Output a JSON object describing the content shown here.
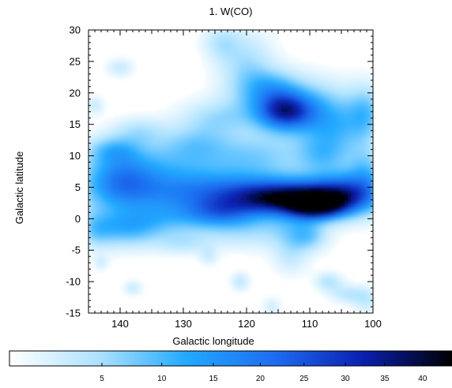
{
  "chart_data": {
    "type": "heatmap",
    "title": "1. W(CO)",
    "xlabel": "Galactic longitude",
    "ylabel": "Galactic latitude",
    "xlim": [
      145,
      100
    ],
    "ylim": [
      -15,
      30
    ],
    "x_ticks": [
      140,
      130,
      120,
      110,
      100
    ],
    "x_tick_labels": [
      "140",
      "130",
      "120",
      "110",
      "100"
    ],
    "y_ticks": [
      30,
      25,
      20,
      15,
      10,
      5,
      0,
      -5,
      -10,
      -15
    ],
    "y_tick_labels": [
      "30",
      "25",
      "20",
      "15",
      "10",
      "5",
      "0",
      "-5",
      "-10",
      "-15"
    ],
    "colorbar": {
      "ticks": [
        5,
        10,
        15,
        20,
        25,
        30,
        35,
        40
      ],
      "tick_labels": [
        "5",
        "10",
        "15",
        "20",
        "25",
        "30",
        "35",
        "40"
      ],
      "range": [
        0,
        44
      ],
      "colors": [
        "#ffffff",
        "#aee2ff",
        "#22a9ff",
        "#1e6cf0",
        "#0a1fb0",
        "#000000"
      ]
    },
    "emission_regions": [
      {
        "l": 120,
        "b": 4,
        "sl": 14,
        "sb": 2.2,
        "w": 22
      },
      {
        "l": 113,
        "b": 3,
        "sl": 6,
        "sb": 1.8,
        "w": 26
      },
      {
        "l": 109,
        "b": 2,
        "sl": 3,
        "sb": 1.4,
        "w": 30
      },
      {
        "l": 104,
        "b": 4,
        "sl": 4,
        "sb": 2.5,
        "w": 18
      },
      {
        "l": 140,
        "b": 6,
        "sl": 4,
        "sb": 3,
        "w": 14
      },
      {
        "l": 133,
        "b": 8,
        "sl": 9,
        "sb": 3,
        "w": 12
      },
      {
        "l": 133,
        "b": 0,
        "sl": 8,
        "sb": 2,
        "w": 11
      },
      {
        "l": 139,
        "b": -2,
        "sl": 4,
        "sb": 2,
        "w": 11
      },
      {
        "l": 124,
        "b": 1,
        "sl": 4,
        "sb": 1.5,
        "w": 12
      },
      {
        "l": 118,
        "b": 10,
        "sl": 5,
        "sb": 2.5,
        "w": 9
      },
      {
        "l": 128,
        "b": 12,
        "sl": 4,
        "sb": 2,
        "w": 8
      },
      {
        "l": 141,
        "b": 11,
        "sl": 3,
        "sb": 1.5,
        "w": 10
      },
      {
        "l": 114,
        "b": 17,
        "sl": 3,
        "sb": 2,
        "w": 24
      },
      {
        "l": 112,
        "b": 18,
        "sl": 6,
        "sb": 3,
        "w": 14
      },
      {
        "l": 106,
        "b": 14,
        "sl": 4,
        "sb": 3,
        "w": 12
      },
      {
        "l": 108,
        "b": 10,
        "sl": 3,
        "sb": 2,
        "w": 9
      },
      {
        "l": 101,
        "b": 17,
        "sl": 2,
        "sb": 3,
        "w": 10
      },
      {
        "l": 101,
        "b": 8,
        "sl": 2,
        "sb": 2.5,
        "w": 9
      },
      {
        "l": 120,
        "b": 24,
        "sl": 3,
        "sb": 4,
        "w": 9
      },
      {
        "l": 116,
        "b": 21,
        "sl": 3,
        "sb": 2,
        "w": 9
      },
      {
        "l": 124,
        "b": 28,
        "sl": 2,
        "sb": 2,
        "w": 7
      },
      {
        "l": 140,
        "b": 24,
        "sl": 1.5,
        "sb": 1,
        "w": 6
      },
      {
        "l": 144,
        "b": 18,
        "sl": 1,
        "sb": 1,
        "w": 6
      },
      {
        "l": 125,
        "b": 16,
        "sl": 4,
        "sb": 2,
        "w": 8
      },
      {
        "l": 137,
        "b": 14,
        "sl": 3,
        "sb": 1.5,
        "w": 7
      },
      {
        "l": 120,
        "b": -2,
        "sl": 5,
        "sb": 2,
        "w": 7
      },
      {
        "l": 112,
        "b": -2,
        "sl": 3,
        "sb": 2,
        "w": 8
      },
      {
        "l": 113,
        "b": -6,
        "sl": 2,
        "sb": 2,
        "w": 6
      },
      {
        "l": 110,
        "b": -3,
        "sl": 2,
        "sb": 1.5,
        "w": 7
      },
      {
        "l": 130,
        "b": -4,
        "sl": 3,
        "sb": 1.2,
        "w": 6
      },
      {
        "l": 144,
        "b": -2,
        "sl": 2,
        "sb": 2,
        "w": 7
      },
      {
        "l": 121,
        "b": -10,
        "sl": 1,
        "sb": 1,
        "w": 7
      },
      {
        "l": 107,
        "b": -10,
        "sl": 1.5,
        "sb": 1,
        "w": 8
      },
      {
        "l": 104,
        "b": -12,
        "sl": 2,
        "sb": 1,
        "w": 7
      },
      {
        "l": 101,
        "b": -13,
        "sl": 1.5,
        "sb": 1.5,
        "w": 6
      },
      {
        "l": 138,
        "b": -11,
        "sl": 1,
        "sb": 0.8,
        "w": 6
      },
      {
        "l": 143,
        "b": -7,
        "sl": 0.8,
        "sb": 0.8,
        "w": 5
      },
      {
        "l": 116,
        "b": -14,
        "sl": 1,
        "sb": 1,
        "w": 5
      },
      {
        "l": 126,
        "b": -6,
        "sl": 1,
        "sb": 1,
        "w": 5
      }
    ]
  }
}
